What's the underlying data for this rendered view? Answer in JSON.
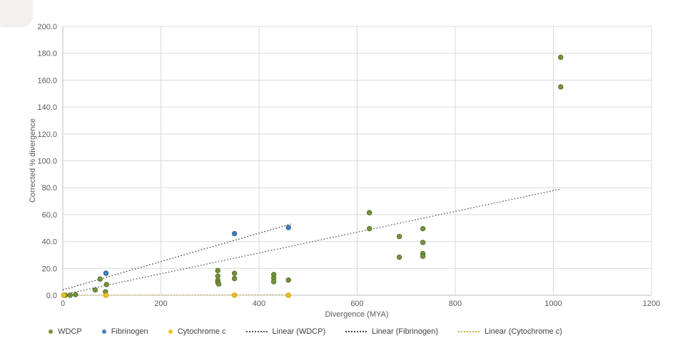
{
  "chart_data": {
    "type": "scatter",
    "title": "",
    "xlabel": "Divergence (MYA)",
    "ylabel": "Corrected % divergence",
    "xlim": [
      0,
      1200
    ],
    "ylim": [
      0,
      200
    ],
    "grid": true,
    "legend_position": "bottom",
    "xticks": [
      0,
      200,
      400,
      600,
      800,
      1000,
      1200
    ],
    "xtick_labels": [
      "0",
      "200",
      "400",
      "600",
      "800",
      "1000",
      "1200"
    ],
    "yticks": [
      0,
      20,
      40,
      60,
      80,
      100,
      120,
      140,
      160,
      180,
      200
    ],
    "ytick_labels": [
      "0.0",
      "20.0",
      "40.0",
      "60.0",
      "80.0",
      "100.0",
      "120.0",
      "140.0",
      "160.0",
      "180.0",
      "200.0"
    ],
    "series": [
      {
        "name": "WDCP",
        "color": "#76923c",
        "border_color": "#55702a",
        "points": [
          [
            5,
            0
          ],
          [
            15,
            0
          ],
          [
            26,
            0.5
          ],
          [
            66,
            4
          ],
          [
            76,
            12
          ],
          [
            87,
            2.5
          ],
          [
            89,
            8
          ],
          [
            316,
            18.4
          ],
          [
            316,
            14.2
          ],
          [
            316,
            11
          ],
          [
            316,
            9.5
          ],
          [
            318,
            8.3
          ],
          [
            350,
            16.3
          ],
          [
            350,
            12.4
          ],
          [
            430,
            15.4
          ],
          [
            430,
            12.7
          ],
          [
            430,
            10.1
          ],
          [
            460,
            11.3
          ],
          [
            625,
            61.4
          ],
          [
            625,
            49.5
          ],
          [
            686,
            43.7
          ],
          [
            686,
            28.3
          ],
          [
            734,
            49.5
          ],
          [
            734,
            39.3
          ],
          [
            734,
            31
          ],
          [
            734,
            29
          ],
          [
            1015,
            177
          ],
          [
            1015,
            155
          ]
        ]
      },
      {
        "name": "Fibrinogen",
        "color": "#4a7ebb",
        "border_color": "#2f5a93",
        "points": [
          [
            88,
            16.4
          ],
          [
            350,
            45.8
          ],
          [
            460,
            50.4
          ]
        ]
      },
      {
        "name": "Cytochrome c",
        "color": "#eac51c",
        "border_color": "#d0980f",
        "points": [
          [
            2,
            0
          ],
          [
            88,
            0
          ],
          [
            350,
            0
          ],
          [
            460,
            0
          ]
        ]
      }
    ],
    "trendlines": [
      {
        "name": "Linear (WDCP)",
        "color": "#595959",
        "from": [
          0,
          0.5
        ],
        "to": [
          1015,
          79
        ]
      },
      {
        "name": "Linear (Fibrinogen)",
        "color": "#404040",
        "from": [
          0,
          4
        ],
        "to": [
          465,
          53
        ]
      },
      {
        "name": "Linear (Cytochrome c)",
        "color": "#bfb345",
        "from": [
          0,
          0
        ],
        "to": [
          465,
          0.4
        ]
      }
    ]
  },
  "legend": {
    "items": [
      {
        "label": "WDCP",
        "type": "dot",
        "color": "#76923c"
      },
      {
        "label": "Fibrinogen",
        "type": "dot",
        "color": "#4a7ebb"
      },
      {
        "label": "Cytochrome c",
        "type": "dot",
        "color": "#eac51c"
      },
      {
        "label": "Linear (WDCP)",
        "type": "line",
        "color": "#595959"
      },
      {
        "label": "Linear (Fibrinogen)",
        "type": "line",
        "color": "#404040"
      },
      {
        "label": "Linear (Cytochrome c)",
        "type": "line",
        "color": "#bfb345"
      }
    ]
  },
  "colors": {
    "gridline": "#d9d9d9",
    "axis_line": "#bfbfbf",
    "tick_text": "#595959",
    "legend_text": "#404040",
    "background": "#ffffff"
  }
}
